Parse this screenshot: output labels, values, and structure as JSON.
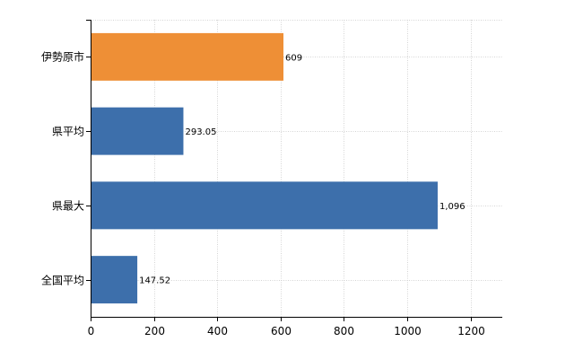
{
  "chart_data": {
    "type": "bar",
    "orientation": "horizontal",
    "categories": [
      "伊勢原市",
      "県平均",
      "県最大",
      "全国平均"
    ],
    "values": [
      609,
      293.05,
      1096,
      147.52
    ],
    "value_labels": [
      "609",
      "293.05",
      "1,096",
      "147.52"
    ],
    "bar_colors": [
      "#ee8f36",
      "#3d6fab",
      "#3d6fab",
      "#3d6fab"
    ],
    "xlim": [
      0,
      1300
    ],
    "x_ticks": [
      0,
      200,
      400,
      600,
      800,
      1000,
      1200
    ],
    "grid": true,
    "legend": "none"
  }
}
